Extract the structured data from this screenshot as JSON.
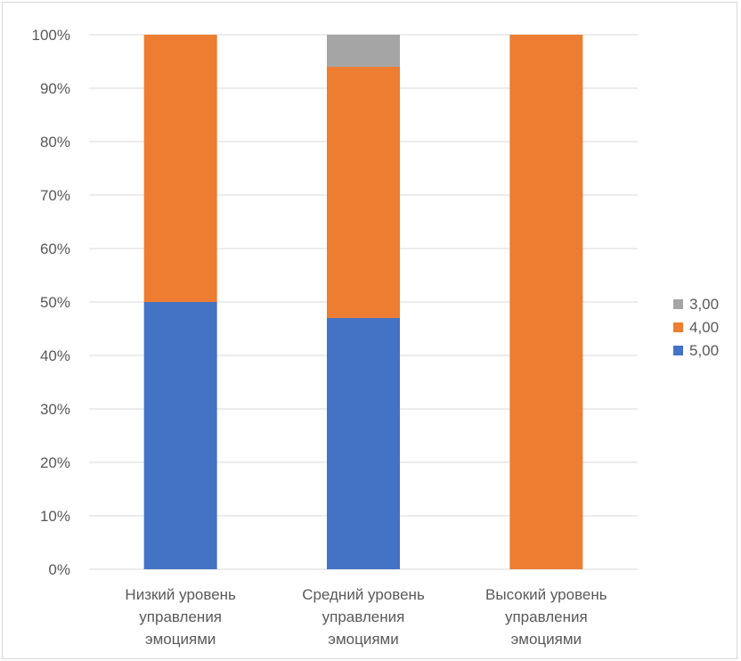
{
  "chart_data": {
    "type": "bar",
    "stacked": true,
    "percent": true,
    "categories": [
      [
        "Низкий уровень",
        "управления",
        "эмоциями"
      ],
      [
        "Средний уровень",
        "управления",
        "эмоциями"
      ],
      [
        "Высокий уровень",
        "управления",
        "эмоциями"
      ]
    ],
    "series": [
      {
        "name": "5,00",
        "color": "#4472c4",
        "values": [
          50,
          47,
          0
        ]
      },
      {
        "name": "4,00",
        "color": "#ed7d31",
        "values": [
          50,
          47,
          100
        ]
      },
      {
        "name": "3,00",
        "color": "#a5a5a5",
        "values": [
          0,
          6,
          0
        ]
      }
    ],
    "yticks": [
      "0%",
      "10%",
      "20%",
      "30%",
      "40%",
      "50%",
      "60%",
      "70%",
      "80%",
      "90%",
      "100%"
    ],
    "ylim": [
      0,
      100
    ],
    "grid": true,
    "gridColor": "#d9d9d9",
    "legend_position": "right",
    "legend_order": [
      "3,00",
      "4,00",
      "5,00"
    ],
    "title": "",
    "xlabel": "",
    "ylabel": ""
  }
}
